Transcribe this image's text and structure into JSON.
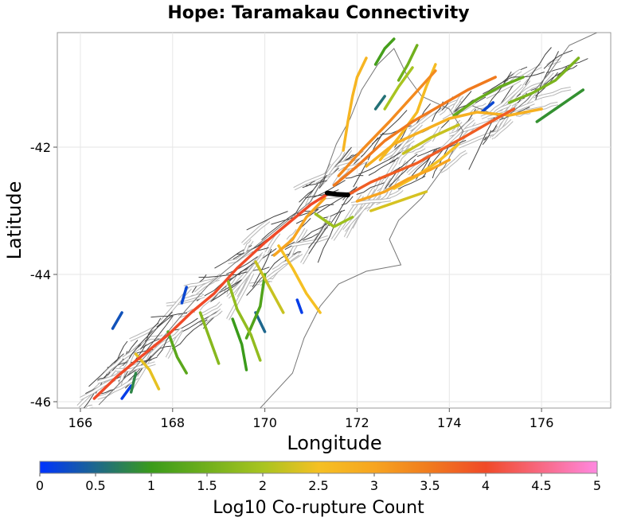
{
  "chart_data": {
    "type": "map",
    "title": "Hope: Taramakau Connectivity",
    "xlabel": "Longitude",
    "ylabel": "Latitude",
    "xlim": [
      165.5,
      177.5
    ],
    "ylim": [
      -46.1,
      -40.2
    ],
    "x_ticks": [
      166,
      168,
      170,
      172,
      174,
      176
    ],
    "y_ticks": [
      -42,
      -44,
      -46
    ],
    "grid": true,
    "colorbar": {
      "title": "Log10 Co-rupture Count",
      "range": [
        0,
        5
      ],
      "ticks": [
        0,
        0.5,
        1,
        1.5,
        2,
        2.5,
        3,
        3.5,
        4,
        4.5,
        5
      ],
      "tick_labels": [
        "0",
        "0.5",
        "1",
        "1.5",
        "2",
        "2.5",
        "3",
        "3.5",
        "4",
        "4.5",
        "5"
      ],
      "stops": [
        {
          "v": 0,
          "color": "#0033ff"
        },
        {
          "v": 1,
          "color": "#3a9b1a"
        },
        {
          "v": 2,
          "color": "#a8c420"
        },
        {
          "v": 2.5,
          "color": "#f5c023"
        },
        {
          "v": 3,
          "color": "#f7a520"
        },
        {
          "v": 3.5,
          "color": "#f07a1e"
        },
        {
          "v": 4,
          "color": "#f04a28"
        },
        {
          "v": 5,
          "color": "#ff88e0"
        }
      ]
    },
    "source_fault": {
      "name": "Hope: Taramakau",
      "points": [
        [
          171.35,
          -42.72
        ],
        [
          171.55,
          -42.74
        ],
        [
          171.8,
          -42.75
        ]
      ],
      "color": "#000000"
    },
    "coastline": [
      [
        166.4,
        -46.05
      ],
      [
        167.2,
        -45.45
      ],
      [
        167.9,
        -44.9
      ],
      [
        168.3,
        -44.55
      ],
      [
        168.8,
        -44.15
      ],
      [
        169.3,
        -43.85
      ],
      [
        169.9,
        -43.5
      ],
      [
        170.5,
        -43.15
      ],
      [
        171.0,
        -42.85
      ],
      [
        171.3,
        -42.45
      ],
      [
        171.55,
        -41.95
      ],
      [
        171.85,
        -41.55
      ],
      [
        172.1,
        -41.1
      ],
      [
        172.45,
        -40.7
      ],
      [
        172.8,
        -40.45
      ],
      [
        173.1,
        -40.9
      ],
      [
        173.4,
        -41.2
      ],
      [
        174.0,
        -41.4
      ],
      [
        174.3,
        -41.75
      ],
      [
        173.9,
        -42.3
      ],
      [
        173.4,
        -42.8
      ],
      [
        172.9,
        -43.15
      ],
      [
        172.7,
        -43.45
      ],
      [
        172.95,
        -43.85
      ],
      [
        172.2,
        -43.95
      ],
      [
        171.6,
        -44.15
      ],
      [
        171.2,
        -44.5
      ],
      [
        170.85,
        -45.0
      ],
      [
        170.6,
        -45.55
      ],
      [
        169.9,
        -46.1
      ]
    ],
    "coastline_ni": [
      [
        174.5,
        -41.35
      ],
      [
        175.2,
        -41.55
      ],
      [
        175.7,
        -41.25
      ],
      [
        176.2,
        -40.8
      ],
      [
        176.6,
        -40.4
      ],
      [
        177.2,
        -40.2
      ]
    ],
    "ruptures": [
      {
        "v": 4.0,
        "points": [
          [
            171.4,
            -42.72
          ],
          [
            171.0,
            -42.9
          ],
          [
            170.5,
            -43.2
          ],
          [
            170.0,
            -43.5
          ],
          [
            169.4,
            -43.9
          ],
          [
            168.9,
            -44.3
          ],
          [
            168.4,
            -44.6
          ],
          [
            167.9,
            -44.95
          ],
          [
            167.3,
            -45.3
          ],
          [
            166.8,
            -45.6
          ],
          [
            166.3,
            -45.95
          ]
        ]
      },
      {
        "v": 3.8,
        "points": [
          [
            171.8,
            -42.75
          ],
          [
            172.3,
            -42.55
          ],
          [
            172.8,
            -42.4
          ],
          [
            173.3,
            -42.25
          ],
          [
            173.8,
            -42.05
          ],
          [
            174.3,
            -41.85
          ],
          [
            174.9,
            -41.6
          ],
          [
            175.4,
            -41.4
          ]
        ]
      },
      {
        "v": 3.5,
        "points": [
          [
            171.5,
            -42.6
          ],
          [
            172.0,
            -42.3
          ],
          [
            172.6,
            -41.9
          ],
          [
            173.2,
            -41.6
          ],
          [
            173.8,
            -41.35
          ],
          [
            174.4,
            -41.1
          ],
          [
            175.0,
            -40.9
          ]
        ]
      },
      {
        "v": 3.3,
        "points": [
          [
            171.6,
            -42.45
          ],
          [
            172.1,
            -42.05
          ],
          [
            172.7,
            -41.6
          ],
          [
            173.2,
            -41.2
          ],
          [
            173.7,
            -40.8
          ]
        ]
      },
      {
        "v": 3.0,
        "points": [
          [
            171.3,
            -42.8
          ],
          [
            170.9,
            -43.1
          ],
          [
            170.6,
            -43.45
          ],
          [
            170.2,
            -43.7
          ]
        ]
      },
      {
        "v": 3.0,
        "points": [
          [
            172.0,
            -42.85
          ],
          [
            172.6,
            -42.7
          ],
          [
            173.1,
            -42.5
          ],
          [
            173.6,
            -42.35
          ],
          [
            174.0,
            -42.2
          ]
        ]
      },
      {
        "v": 2.8,
        "points": [
          [
            172.2,
            -42.3
          ],
          [
            172.8,
            -41.95
          ],
          [
            173.4,
            -41.75
          ],
          [
            174.0,
            -41.55
          ],
          [
            174.6,
            -41.45
          ],
          [
            175.3,
            -41.5
          ],
          [
            176.0,
            -41.4
          ]
        ]
      },
      {
        "v": 2.7,
        "points": [
          [
            171.7,
            -42.05
          ],
          [
            171.8,
            -41.6
          ],
          [
            171.9,
            -41.2
          ],
          [
            172.0,
            -40.9
          ],
          [
            172.2,
            -40.6
          ]
        ]
      },
      {
        "v": 2.6,
        "points": [
          [
            172.5,
            -42.2
          ],
          [
            172.9,
            -41.85
          ],
          [
            173.3,
            -41.45
          ],
          [
            173.5,
            -41.05
          ],
          [
            173.7,
            -40.7
          ]
        ]
      },
      {
        "v": 2.5,
        "points": [
          [
            172.8,
            -42.65
          ],
          [
            173.3,
            -42.45
          ],
          [
            173.8,
            -42.2
          ],
          [
            174.2,
            -41.95
          ]
        ]
      },
      {
        "v": 2.5,
        "points": [
          [
            170.3,
            -43.55
          ],
          [
            170.6,
            -43.9
          ],
          [
            170.9,
            -44.3
          ],
          [
            171.2,
            -44.6
          ]
        ]
      },
      {
        "v": 2.4,
        "points": [
          [
            167.2,
            -45.25
          ],
          [
            167.5,
            -45.5
          ],
          [
            167.7,
            -45.8
          ]
        ]
      },
      {
        "v": 2.3,
        "points": [
          [
            172.3,
            -43.0
          ],
          [
            172.9,
            -42.85
          ],
          [
            173.5,
            -42.7
          ]
        ]
      },
      {
        "v": 2.2,
        "points": [
          [
            173.0,
            -42.1
          ],
          [
            173.6,
            -41.85
          ],
          [
            174.2,
            -41.65
          ]
        ]
      },
      {
        "v": 2.2,
        "points": [
          [
            169.8,
            -43.8
          ],
          [
            170.1,
            -44.2
          ],
          [
            170.4,
            -44.6
          ]
        ]
      },
      {
        "v": 2.0,
        "points": [
          [
            172.6,
            -41.4
          ],
          [
            172.9,
            -41.05
          ],
          [
            173.2,
            -40.75
          ]
        ]
      },
      {
        "v": 1.9,
        "points": [
          [
            171.1,
            -43.05
          ],
          [
            171.5,
            -43.25
          ],
          [
            171.9,
            -43.1
          ]
        ]
      },
      {
        "v": 1.8,
        "points": [
          [
            169.2,
            -44.1
          ],
          [
            169.4,
            -44.55
          ],
          [
            169.7,
            -44.95
          ],
          [
            169.9,
            -45.35
          ]
        ]
      },
      {
        "v": 1.7,
        "points": [
          [
            168.6,
            -44.6
          ],
          [
            168.8,
            -45.0
          ],
          [
            169.0,
            -45.4
          ]
        ]
      },
      {
        "v": 1.6,
        "points": [
          [
            175.3,
            -41.3
          ],
          [
            175.8,
            -41.15
          ],
          [
            176.3,
            -40.95
          ],
          [
            176.8,
            -40.6
          ]
        ]
      },
      {
        "v": 1.5,
        "points": [
          [
            172.9,
            -40.95
          ],
          [
            173.1,
            -40.7
          ],
          [
            173.3,
            -40.4
          ]
        ]
      },
      {
        "v": 1.4,
        "points": [
          [
            174.1,
            -41.5
          ],
          [
            174.6,
            -41.25
          ],
          [
            175.1,
            -41.05
          ],
          [
            175.6,
            -40.9
          ]
        ]
      },
      {
        "v": 1.3,
        "points": [
          [
            167.9,
            -44.9
          ],
          [
            168.1,
            -45.3
          ],
          [
            168.3,
            -45.55
          ]
        ]
      },
      {
        "v": 1.2,
        "points": [
          [
            170.0,
            -44.0
          ],
          [
            169.9,
            -44.5
          ],
          [
            169.6,
            -45.0
          ]
        ]
      },
      {
        "v": 1.1,
        "points": [
          [
            172.4,
            -40.7
          ],
          [
            172.6,
            -40.45
          ],
          [
            172.8,
            -40.3
          ]
        ]
      },
      {
        "v": 1.0,
        "points": [
          [
            169.3,
            -44.7
          ],
          [
            169.5,
            -45.1
          ],
          [
            169.6,
            -45.5
          ]
        ]
      },
      {
        "v": 0.9,
        "points": [
          [
            175.9,
            -41.6
          ],
          [
            176.4,
            -41.35
          ],
          [
            176.9,
            -41.1
          ]
        ]
      },
      {
        "v": 0.8,
        "points": [
          [
            167.2,
            -45.55
          ],
          [
            167.1,
            -45.85
          ]
        ]
      },
      {
        "v": 0.6,
        "points": [
          [
            172.4,
            -41.4
          ],
          [
            172.6,
            -41.2
          ]
        ]
      },
      {
        "v": 0.5,
        "points": [
          [
            169.8,
            -44.6
          ],
          [
            170.0,
            -44.9
          ]
        ]
      },
      {
        "v": 0.3,
        "points": [
          [
            166.9,
            -44.6
          ],
          [
            166.7,
            -44.85
          ]
        ]
      },
      {
        "v": 0.2,
        "points": [
          [
            168.3,
            -44.2
          ],
          [
            168.2,
            -44.45
          ]
        ]
      },
      {
        "v": 0.2,
        "points": [
          [
            174.7,
            -41.45
          ],
          [
            174.95,
            -41.3
          ]
        ]
      },
      {
        "v": 0.1,
        "points": [
          [
            170.7,
            -44.4
          ],
          [
            170.8,
            -44.6
          ]
        ]
      },
      {
        "v": 0.1,
        "points": [
          [
            166.9,
            -45.95
          ],
          [
            167.1,
            -45.75
          ]
        ]
      }
    ]
  }
}
